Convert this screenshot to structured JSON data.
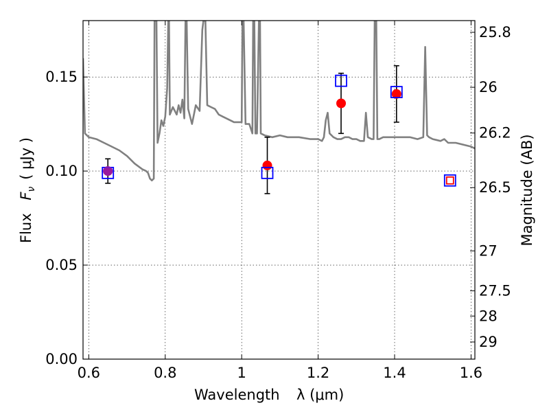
{
  "chart_data": {
    "type": "scatter",
    "xlabel": "Wavelength",
    "xlabel_symbol": "λ (μm)",
    "ylabel": "Flux",
    "ylabel_symbol": "F",
    "ylabel_subscript": "ν",
    "ylabel_unit": "( μJy )",
    "y2label": "Magnitude (AB)",
    "xlim": [
      0.585,
      1.61
    ],
    "ylim": [
      0.0,
      0.18
    ],
    "grid": true,
    "grid_style": "dotted",
    "x_ticks": [
      0.6,
      0.8,
      1.0,
      1.2,
      1.4,
      1.6
    ],
    "x_tick_labels": [
      "0.6",
      "0.8",
      "1",
      "1.2",
      "1.4",
      "1.6"
    ],
    "y_ticks": [
      0.0,
      0.05,
      0.1,
      0.15
    ],
    "y_tick_labels": [
      "0.00",
      "0.05",
      "0.10",
      "0.15"
    ],
    "y2_ticks": [
      {
        "label": "25.8",
        "mag": 25.8
      },
      {
        "label": "26",
        "mag": 26.0
      },
      {
        "label": "26.2",
        "mag": 26.2
      },
      {
        "label": "26.5",
        "mag": 26.5
      },
      {
        "label": "27",
        "mag": 27.0
      },
      {
        "label": "27.5",
        "mag": 27.5
      },
      {
        "label": "28",
        "mag": 28.0
      },
      {
        "label": "29",
        "mag": 29.0
      }
    ],
    "series": [
      {
        "kind": "line",
        "color": "#808080",
        "points": [
          [
            0.585,
            0.16
          ],
          [
            0.59,
            0.12
          ],
          [
            0.6,
            0.118
          ],
          [
            0.62,
            0.117
          ],
          [
            0.64,
            0.115
          ],
          [
            0.66,
            0.113
          ],
          [
            0.68,
            0.111
          ],
          [
            0.7,
            0.108
          ],
          [
            0.72,
            0.104
          ],
          [
            0.74,
            0.101
          ],
          [
            0.75,
            0.1
          ],
          [
            0.755,
            0.099
          ],
          [
            0.76,
            0.096
          ],
          [
            0.765,
            0.095
          ],
          [
            0.77,
            0.096
          ],
          [
            0.772,
            0.18
          ],
          [
            0.775,
            0.18
          ],
          [
            0.777,
            0.18
          ],
          [
            0.78,
            0.115
          ],
          [
            0.785,
            0.12
          ],
          [
            0.79,
            0.127
          ],
          [
            0.795,
            0.124
          ],
          [
            0.8,
            0.129
          ],
          [
            0.805,
            0.144
          ],
          [
            0.808,
            0.18
          ],
          [
            0.81,
            0.18
          ],
          [
            0.812,
            0.13
          ],
          [
            0.82,
            0.134
          ],
          [
            0.83,
            0.13
          ],
          [
            0.835,
            0.135
          ],
          [
            0.84,
            0.131
          ],
          [
            0.845,
            0.138
          ],
          [
            0.85,
            0.128
          ],
          [
            0.853,
            0.18
          ],
          [
            0.856,
            0.18
          ],
          [
            0.86,
            0.133
          ],
          [
            0.87,
            0.125
          ],
          [
            0.88,
            0.135
          ],
          [
            0.89,
            0.132
          ],
          [
            0.897,
            0.175
          ],
          [
            0.9,
            0.18
          ],
          [
            0.905,
            0.18
          ],
          [
            0.91,
            0.135
          ],
          [
            0.92,
            0.134
          ],
          [
            0.93,
            0.133
          ],
          [
            0.94,
            0.13
          ],
          [
            0.95,
            0.129
          ],
          [
            0.96,
            0.128
          ],
          [
            0.97,
            0.127
          ],
          [
            0.98,
            0.126
          ],
          [
            0.99,
            0.126
          ],
          [
            1.0,
            0.126
          ],
          [
            1.002,
            0.18
          ],
          [
            1.005,
            0.18
          ],
          [
            1.01,
            0.125
          ],
          [
            1.02,
            0.125
          ],
          [
            1.028,
            0.12
          ],
          [
            1.03,
            0.18
          ],
          [
            1.033,
            0.18
          ],
          [
            1.036,
            0.12
          ],
          [
            1.04,
            0.12
          ],
          [
            1.045,
            0.18
          ],
          [
            1.048,
            0.18
          ],
          [
            1.05,
            0.12
          ],
          [
            1.06,
            0.119
          ],
          [
            1.08,
            0.118
          ],
          [
            1.1,
            0.119
          ],
          [
            1.12,
            0.118
          ],
          [
            1.15,
            0.118
          ],
          [
            1.18,
            0.117
          ],
          [
            1.2,
            0.117
          ],
          [
            1.21,
            0.116
          ],
          [
            1.215,
            0.118
          ],
          [
            1.22,
            0.127
          ],
          [
            1.225,
            0.131
          ],
          [
            1.23,
            0.12
          ],
          [
            1.24,
            0.118
          ],
          [
            1.25,
            0.117
          ],
          [
            1.26,
            0.117
          ],
          [
            1.27,
            0.118
          ],
          [
            1.28,
            0.118
          ],
          [
            1.29,
            0.117
          ],
          [
            1.3,
            0.117
          ],
          [
            1.31,
            0.116
          ],
          [
            1.32,
            0.116
          ],
          [
            1.325,
            0.131
          ],
          [
            1.33,
            0.118
          ],
          [
            1.34,
            0.117
          ],
          [
            1.345,
            0.117
          ],
          [
            1.348,
            0.18
          ],
          [
            1.352,
            0.18
          ],
          [
            1.355,
            0.117
          ],
          [
            1.36,
            0.117
          ],
          [
            1.37,
            0.118
          ],
          [
            1.38,
            0.118
          ],
          [
            1.39,
            0.118
          ],
          [
            1.4,
            0.118
          ],
          [
            1.42,
            0.118
          ],
          [
            1.44,
            0.118
          ],
          [
            1.46,
            0.117
          ],
          [
            1.475,
            0.118
          ],
          [
            1.48,
            0.166
          ],
          [
            1.485,
            0.119
          ],
          [
            1.49,
            0.118
          ],
          [
            1.5,
            0.117
          ],
          [
            1.52,
            0.116
          ],
          [
            1.53,
            0.117
          ],
          [
            1.54,
            0.115
          ],
          [
            1.56,
            0.115
          ],
          [
            1.58,
            0.114
          ],
          [
            1.6,
            0.113
          ],
          [
            1.61,
            0.112
          ]
        ]
      },
      {
        "kind": "points",
        "marker": "circle",
        "color": "#ff0000",
        "points": [
          {
            "x": 0.65,
            "y": 0.1,
            "yerr": 0.0065
          },
          {
            "x": 1.067,
            "y": 0.103,
            "yerr": 0.015
          },
          {
            "x": 1.26,
            "y": 0.136,
            "yerr": 0.016
          },
          {
            "x": 1.405,
            "y": 0.141,
            "yerr": 0.015
          }
        ]
      },
      {
        "kind": "points",
        "marker": "square",
        "color": "#0000ff",
        "points": [
          {
            "x": 0.65,
            "y": 0.099
          },
          {
            "x": 1.067,
            "y": 0.099
          },
          {
            "x": 1.26,
            "y": 0.148
          },
          {
            "x": 1.405,
            "y": 0.142
          },
          {
            "x": 1.545,
            "y": 0.095
          }
        ]
      },
      {
        "kind": "points",
        "marker": "small-square",
        "color": "#ff0000",
        "points": [
          {
            "x": 1.545,
            "y": 0.095
          }
        ]
      }
    ]
  }
}
